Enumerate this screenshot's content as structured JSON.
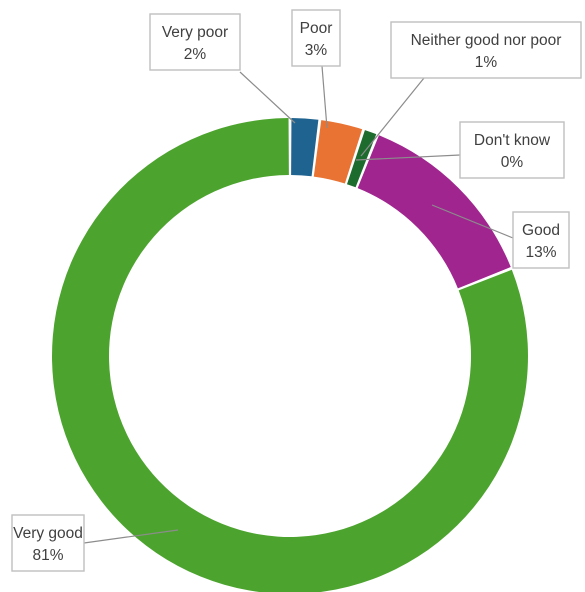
{
  "chart_data": {
    "type": "pie",
    "variant": "doughnut",
    "title": "",
    "categories": [
      "Very poor",
      "Poor",
      "Neither good nor poor",
      "Don't know",
      "Good",
      "Very good"
    ],
    "values": [
      2,
      3,
      1,
      0,
      13,
      81
    ],
    "value_labels": [
      "2%",
      "3%",
      "1%",
      "0%",
      "13%",
      "81%"
    ],
    "colors": [
      "#1F6390",
      "#E87333",
      "#1E6B2E",
      "#7F7F7F",
      "#A0258F",
      "#4CA42E"
    ],
    "legend": "none",
    "labels": "callouts with leader lines"
  }
}
